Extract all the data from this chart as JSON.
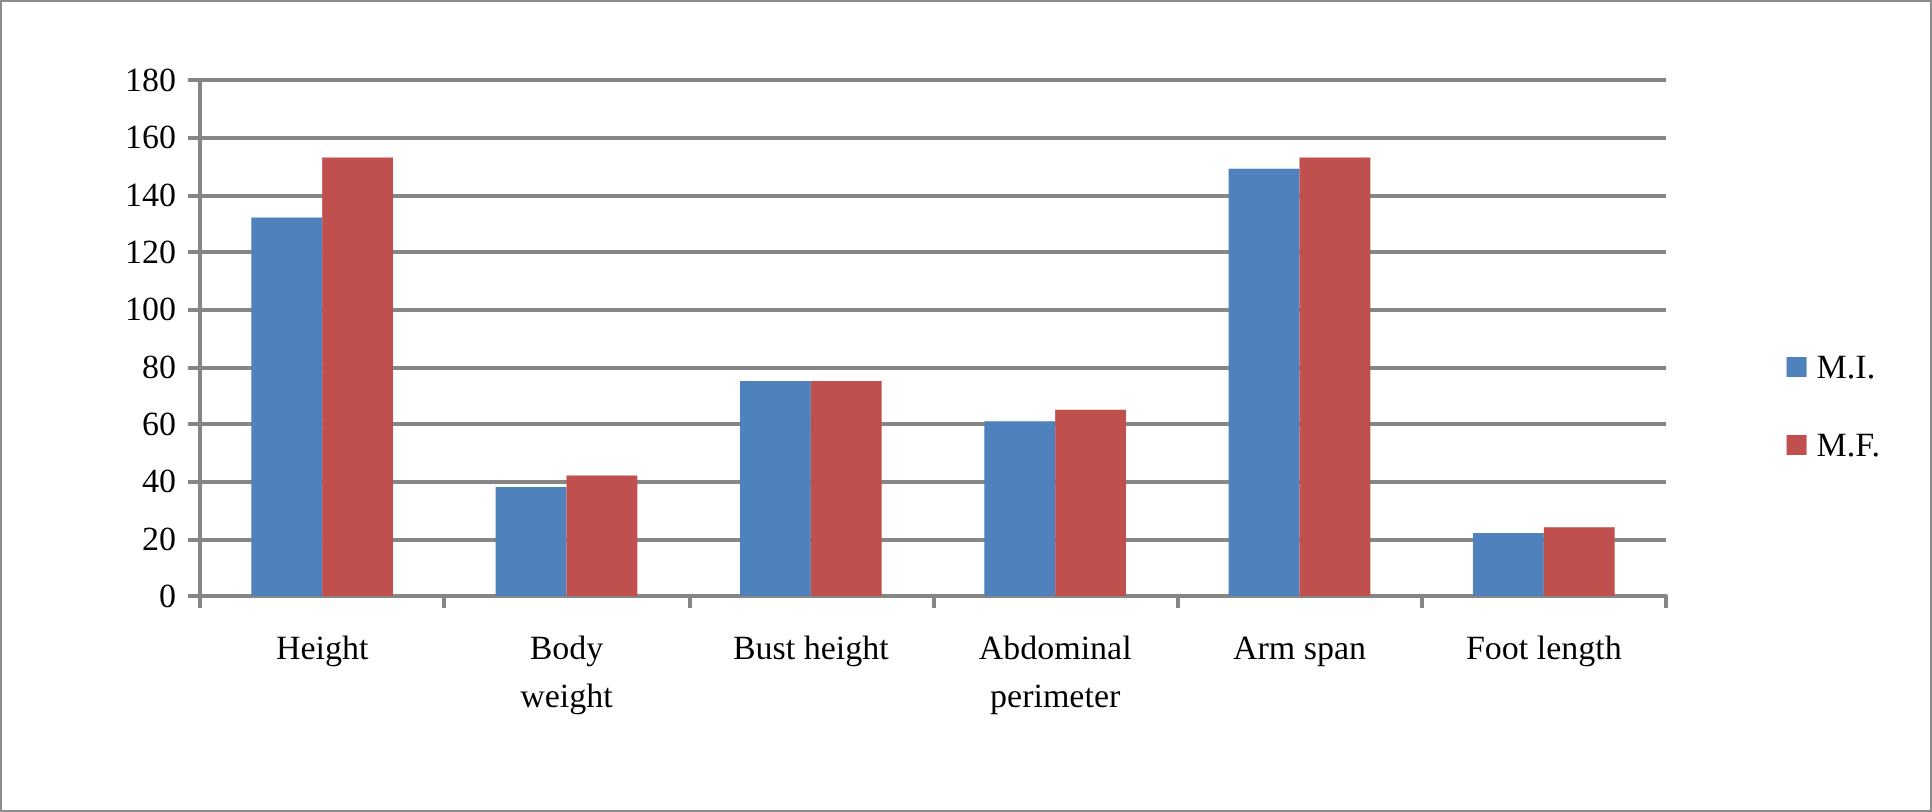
{
  "chart_data": {
    "type": "bar",
    "categories": [
      "Height",
      "Body\nweight",
      "Bust height",
      "Abdominal\nperimeter",
      "Arm span",
      "Foot length"
    ],
    "series": [
      {
        "name": "M.I.",
        "color": "#4f81bd",
        "values": [
          132,
          38,
          75,
          61,
          149,
          22
        ]
      },
      {
        "name": "M.F.",
        "color": "#c0504d",
        "values": [
          153,
          42,
          75,
          65,
          153,
          24
        ]
      }
    ],
    "ylim": [
      0,
      180
    ],
    "yticks": [
      0,
      20,
      40,
      60,
      80,
      100,
      120,
      140,
      160,
      180
    ],
    "grid": "y",
    "legend": "right"
  }
}
